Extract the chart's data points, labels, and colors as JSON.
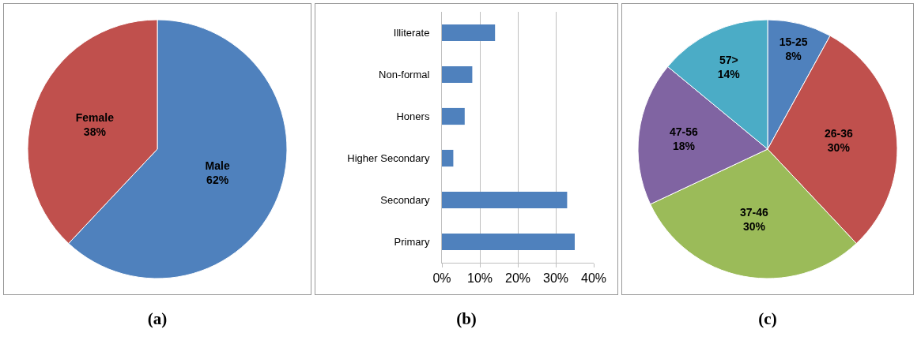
{
  "chart_data": [
    {
      "type": "pie",
      "categories": [
        "Male",
        "Female"
      ],
      "values": [
        62,
        38
      ],
      "value_labels": [
        "62%",
        "38%"
      ],
      "colors": [
        "#4f81bd",
        "#c0504d"
      ],
      "legend": false,
      "annotations": [
        "(a)"
      ]
    },
    {
      "type": "bar",
      "orientation": "horizontal",
      "categories": [
        "Illiterate",
        "Non-formal",
        "Honers",
        "Higher Secondary",
        "Secondary",
        "Primary"
      ],
      "values": [
        14,
        8,
        6,
        3,
        33,
        35
      ],
      "color": "#4f81bd",
      "xlim": [
        0,
        40
      ],
      "xticks": [
        {
          "value": 0,
          "label": "0%"
        },
        {
          "value": 10,
          "label": "10%"
        },
        {
          "value": 20,
          "label": "20%"
        },
        {
          "value": 30,
          "label": "30%"
        },
        {
          "value": 40,
          "label": "40%"
        }
      ],
      "grid": "x",
      "legend": false,
      "annotations": [
        "(b)"
      ]
    },
    {
      "type": "pie",
      "categories": [
        "15-25",
        "26-36",
        "37-46",
        "47-56",
        "57>"
      ],
      "values": [
        8,
        30,
        30,
        18,
        14
      ],
      "value_labels": [
        "8%",
        "30%",
        "30%",
        "18%",
        "14%"
      ],
      "colors": [
        "#4f81bd",
        "#c0504d",
        "#9bbb59",
        "#8064a2",
        "#4bacc6"
      ],
      "legend": false,
      "annotations": [
        "(c)"
      ]
    }
  ]
}
